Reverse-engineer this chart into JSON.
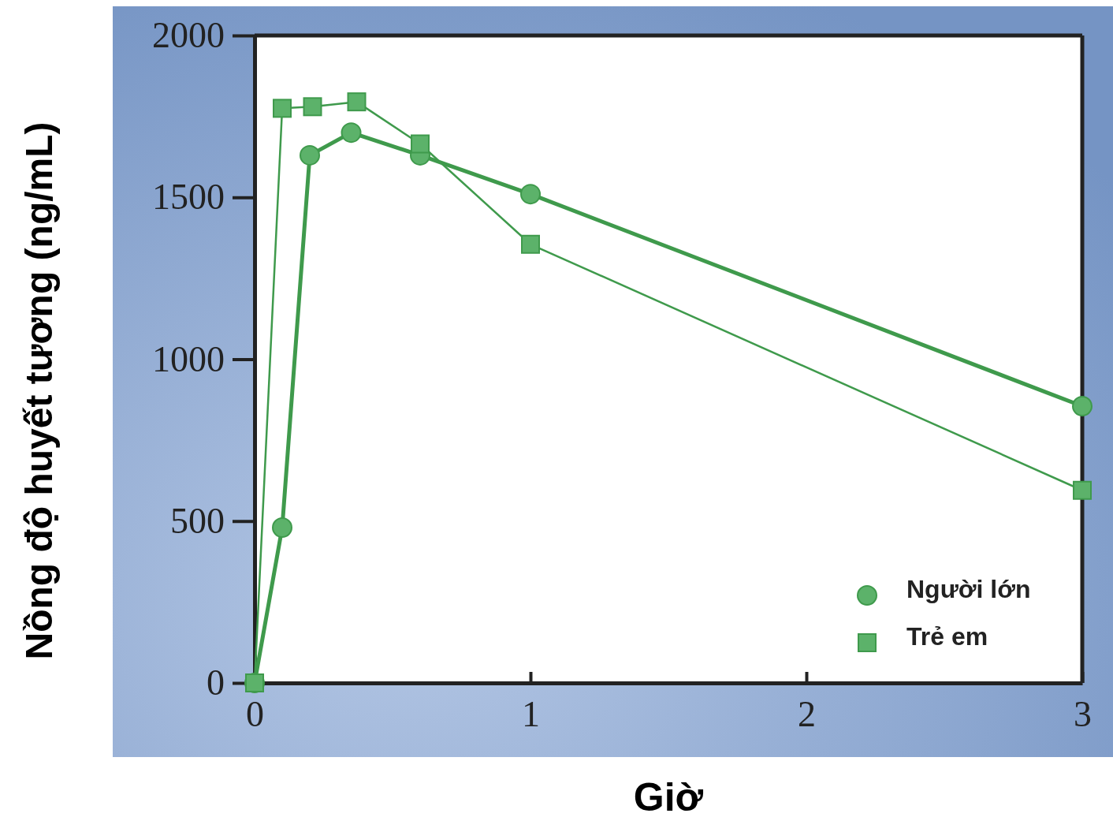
{
  "chart_data": {
    "type": "line",
    "xlabel": "Giờ",
    "ylabel": "Nồng độ huyết tương (ng/mL)",
    "xlim": [
      0,
      3
    ],
    "xticks": [
      0,
      1,
      2,
      3
    ],
    "ylim": [
      0,
      2000
    ],
    "yticks": [
      0,
      500,
      1000,
      1500,
      2000
    ],
    "grid": false,
    "legend": "bottom right",
    "line_style": "solid",
    "series": [
      {
        "name": "Người lớn",
        "color": "#3f9a4c",
        "marker": "circle",
        "x": [
          0,
          0.1,
          0.2,
          0.35,
          0.6,
          1,
          3
        ],
        "values": [
          0,
          480,
          1630,
          1700,
          1630,
          1510,
          855
        ]
      },
      {
        "name": "Trẻ em",
        "color": "#3f9a4c",
        "marker": "square",
        "x": [
          0,
          0.1,
          0.21,
          0.37,
          0.6,
          1,
          3
        ],
        "values": [
          0,
          1775,
          1780,
          1795,
          1665,
          1355,
          595
        ]
      }
    ]
  }
}
